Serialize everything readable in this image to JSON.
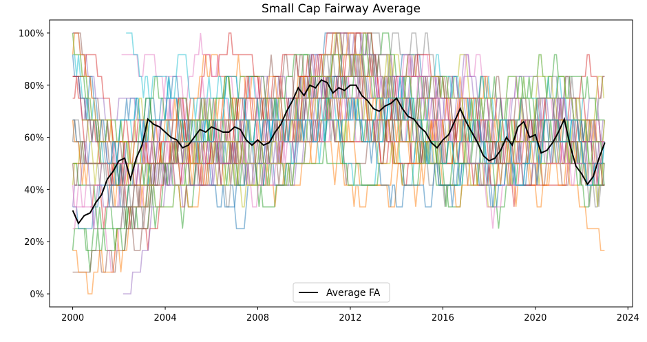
{
  "chart_data": {
    "type": "line",
    "title": "Small Cap Fairway Average",
    "xlabel": "",
    "ylabel": "",
    "xlim": [
      1999.0,
      2024.2
    ],
    "ylim": [
      -0.05,
      1.05
    ],
    "x_ticks": [
      2000,
      2004,
      2008,
      2012,
      2016,
      2020,
      2024
    ],
    "x_tick_labels": [
      "2000",
      "2004",
      "2008",
      "2012",
      "2016",
      "2020",
      "2024"
    ],
    "y_ticks": [
      0,
      0.2,
      0.4,
      0.6,
      0.8,
      1.0
    ],
    "y_tick_labels": [
      "0%",
      "20%",
      "40%",
      "60%",
      "80%",
      "100%"
    ],
    "grid": false,
    "legend": {
      "position": "bottom-center",
      "entries": [
        "Average FA"
      ]
    },
    "background_series_count": 40,
    "background_series_start": 2000.0,
    "background_series_end": 2023.0,
    "background_series_step": 0.0833,
    "background_levels": [
      0,
      0.0833,
      0.1667,
      0.25,
      0.3333,
      0.4167,
      0.5,
      0.5833,
      0.6667,
      0.75,
      0.8333,
      0.9167,
      1.0
    ],
    "background_colors": [
      "#1f77b4",
      "#ff7f0e",
      "#2ca02c",
      "#d62728",
      "#9467bd",
      "#8c564b",
      "#e377c2",
      "#7f7f7f",
      "#bcbd22",
      "#17becf"
    ],
    "average_color": "#000000",
    "series": [
      {
        "name": "Average FA",
        "x": [
          2000.0,
          2000.25,
          2000.5,
          2000.75,
          2001.0,
          2001.25,
          2001.5,
          2001.75,
          2002.0,
          2002.25,
          2002.5,
          2002.75,
          2003.0,
          2003.25,
          2003.5,
          2003.75,
          2004.0,
          2004.25,
          2004.5,
          2004.75,
          2005.0,
          2005.25,
          2005.5,
          2005.75,
          2006.0,
          2006.25,
          2006.5,
          2006.75,
          2007.0,
          2007.25,
          2007.5,
          2007.75,
          2008.0,
          2008.25,
          2008.5,
          2008.75,
          2009.0,
          2009.25,
          2009.5,
          2009.75,
          2010.0,
          2010.25,
          2010.5,
          2010.75,
          2011.0,
          2011.25,
          2011.5,
          2011.75,
          2012.0,
          2012.25,
          2012.5,
          2012.75,
          2013.0,
          2013.25,
          2013.5,
          2013.75,
          2014.0,
          2014.25,
          2014.5,
          2014.75,
          2015.0,
          2015.25,
          2015.5,
          2015.75,
          2016.0,
          2016.25,
          2016.5,
          2016.75,
          2017.0,
          2017.25,
          2017.5,
          2017.75,
          2018.0,
          2018.25,
          2018.5,
          2018.75,
          2019.0,
          2019.25,
          2019.5,
          2019.75,
          2020.0,
          2020.25,
          2020.5,
          2020.75,
          2021.0,
          2021.25,
          2021.5,
          2021.75,
          2022.0,
          2022.25,
          2022.5,
          2022.75,
          2023.0
        ],
        "y": [
          0.32,
          0.27,
          0.3,
          0.31,
          0.35,
          0.38,
          0.44,
          0.47,
          0.51,
          0.52,
          0.44,
          0.52,
          0.57,
          0.67,
          0.65,
          0.64,
          0.62,
          0.6,
          0.59,
          0.56,
          0.57,
          0.6,
          0.63,
          0.62,
          0.64,
          0.63,
          0.62,
          0.62,
          0.64,
          0.63,
          0.59,
          0.57,
          0.59,
          0.57,
          0.58,
          0.62,
          0.65,
          0.7,
          0.74,
          0.79,
          0.76,
          0.8,
          0.79,
          0.82,
          0.81,
          0.77,
          0.79,
          0.78,
          0.8,
          0.8,
          0.76,
          0.74,
          0.71,
          0.7,
          0.72,
          0.73,
          0.75,
          0.71,
          0.68,
          0.67,
          0.64,
          0.62,
          0.58,
          0.56,
          0.59,
          0.61,
          0.66,
          0.71,
          0.66,
          0.62,
          0.58,
          0.53,
          0.51,
          0.52,
          0.55,
          0.6,
          0.57,
          0.64,
          0.66,
          0.6,
          0.61,
          0.54,
          0.55,
          0.58,
          0.62,
          0.67,
          0.57,
          0.49,
          0.46,
          0.42,
          0.45,
          0.52,
          0.58
        ]
      }
    ]
  }
}
